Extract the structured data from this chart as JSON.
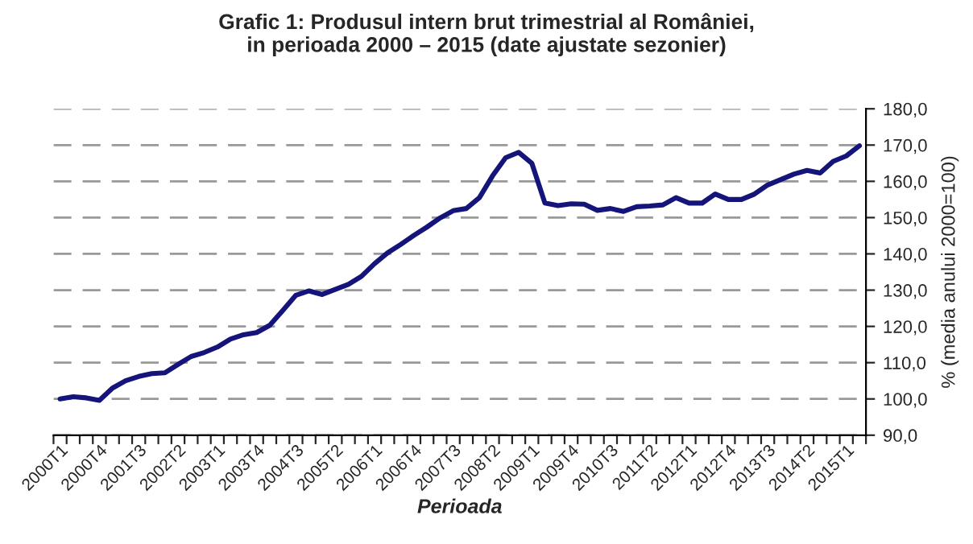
{
  "chart_data": {
    "type": "line",
    "title": "Grafic 1: Produsul intern brut trimestrial al României,\nin perioada 2000 – 2015 (date ajustate sezonier)",
    "xlabel": "Perioada",
    "ylabel": "% (media anului 2000=100)",
    "categories": [
      "2000T1",
      null,
      null,
      "2000T4",
      null,
      null,
      "2001T3",
      null,
      null,
      "2002T2",
      null,
      null,
      "2003T1",
      null,
      null,
      "2003T4",
      null,
      null,
      "2004T3",
      null,
      null,
      "2005T2",
      null,
      null,
      "2006T1",
      null,
      null,
      "2006T4",
      null,
      null,
      "2007T3",
      null,
      null,
      "2008T2",
      null,
      null,
      "2009T1",
      null,
      null,
      "2009T4",
      null,
      null,
      "2010T3",
      null,
      null,
      "2011T2",
      null,
      null,
      "2012T1",
      null,
      null,
      "2012T4",
      null,
      null,
      "2013T3",
      null,
      null,
      "2014T2",
      null,
      null,
      "2015T1",
      null
    ],
    "series": [
      {
        "color": "#14147a",
        "values": [
          100.0,
          100.6,
          100.3,
          99.6,
          103.0,
          105.0,
          106.2,
          107.0,
          107.2,
          109.5,
          111.7,
          112.8,
          114.3,
          116.5,
          117.7,
          118.3,
          120.3,
          124.4,
          128.6,
          129.8,
          128.8,
          130.2,
          131.6,
          133.8,
          137.3,
          140.3,
          142.6,
          145.1,
          147.4,
          149.9,
          151.9,
          152.5,
          155.5,
          161.5,
          166.5,
          168.0,
          165.0,
          154.0,
          153.3,
          153.8,
          153.7,
          152.0,
          152.5,
          151.7,
          153.0,
          153.2,
          153.5,
          155.5,
          154.0,
          154.0,
          156.5,
          155.0,
          155.0,
          156.5,
          159.0,
          160.5,
          162.0,
          163.0,
          162.3,
          165.5,
          167.0,
          169.8
        ]
      }
    ],
    "ylim": [
      90,
      180
    ],
    "yticks": [
      {
        "value": 90,
        "label": "90,0"
      },
      {
        "value": 100,
        "label": "100,0"
      },
      {
        "value": 110,
        "label": "110,0"
      },
      {
        "value": 120,
        "label": "120,0"
      },
      {
        "value": 130,
        "label": "130,0"
      },
      {
        "value": 140,
        "label": "140,0"
      },
      {
        "value": 150,
        "label": "150,0"
      },
      {
        "value": 160,
        "label": "160,0"
      },
      {
        "value": 170,
        "label": "170,0"
      },
      {
        "value": 180,
        "label": "180,0"
      }
    ],
    "grid": "y",
    "line_style": "solid",
    "marker": "none",
    "legend": false
  }
}
